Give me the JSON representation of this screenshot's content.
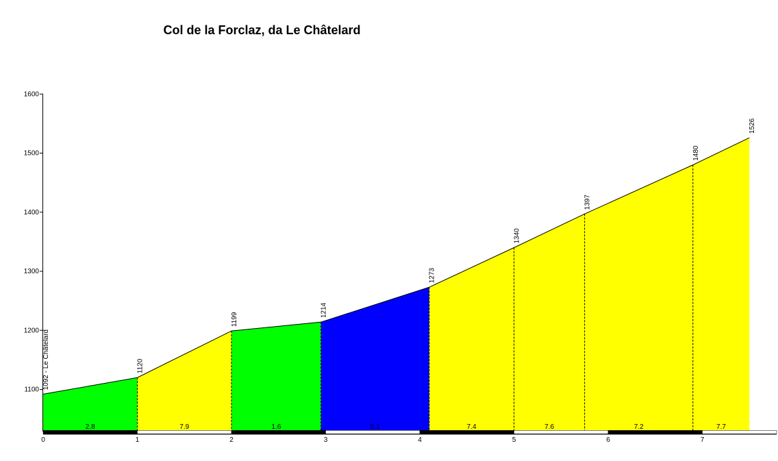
{
  "chart_data": {
    "type": "area",
    "title": "Col de la Forclaz, da Le Châtelard",
    "xlabel": "",
    "ylabel": "",
    "xlim": [
      0,
      7.8
    ],
    "ylim": [
      1030,
      1600
    ],
    "x_ticks": [
      0,
      1,
      2,
      3,
      4,
      5,
      6,
      7
    ],
    "y_ticks": [
      1100,
      1200,
      1300,
      1400,
      1500,
      1600
    ],
    "grid": false,
    "points": [
      {
        "x": 0,
        "y": 1092,
        "label": "1092 - Le Châtelard"
      },
      {
        "x": 1.0,
        "y": 1120,
        "label": "1120"
      },
      {
        "x": 2.0,
        "y": 1199,
        "label": "1199"
      },
      {
        "x": 2.95,
        "y": 1214,
        "label": "1214"
      },
      {
        "x": 4.1,
        "y": 1273,
        "label": "1273"
      },
      {
        "x": 5.0,
        "y": 1340,
        "label": "1340"
      },
      {
        "x": 5.75,
        "y": 1397,
        "label": "1397"
      },
      {
        "x": 6.9,
        "y": 1480,
        "label": "1480"
      },
      {
        "x": 7.5,
        "y": 1526,
        "label": "1526"
      }
    ],
    "segments": [
      {
        "from": 0,
        "to": 1.0,
        "gradient": "2.8",
        "color": "#00ff00"
      },
      {
        "from": 1.0,
        "to": 2.0,
        "gradient": "7.9",
        "color": "#ffff00"
      },
      {
        "from": 2.0,
        "to": 2.95,
        "gradient": "1.6",
        "color": "#00ff00"
      },
      {
        "from": 2.95,
        "to": 4.1,
        "gradient": "5.1",
        "color": "#0000ff"
      },
      {
        "from": 4.1,
        "to": 5.0,
        "gradient": "7.4",
        "color": "#ffff00"
      },
      {
        "from": 5.0,
        "to": 5.75,
        "gradient": "7.6",
        "color": "#ffff00"
      },
      {
        "from": 5.75,
        "to": 6.9,
        "gradient": "7.2",
        "color": "#ffff00"
      },
      {
        "from": 6.9,
        "to": 7.5,
        "gradient": "7.7",
        "color": "#ffff00"
      }
    ]
  }
}
